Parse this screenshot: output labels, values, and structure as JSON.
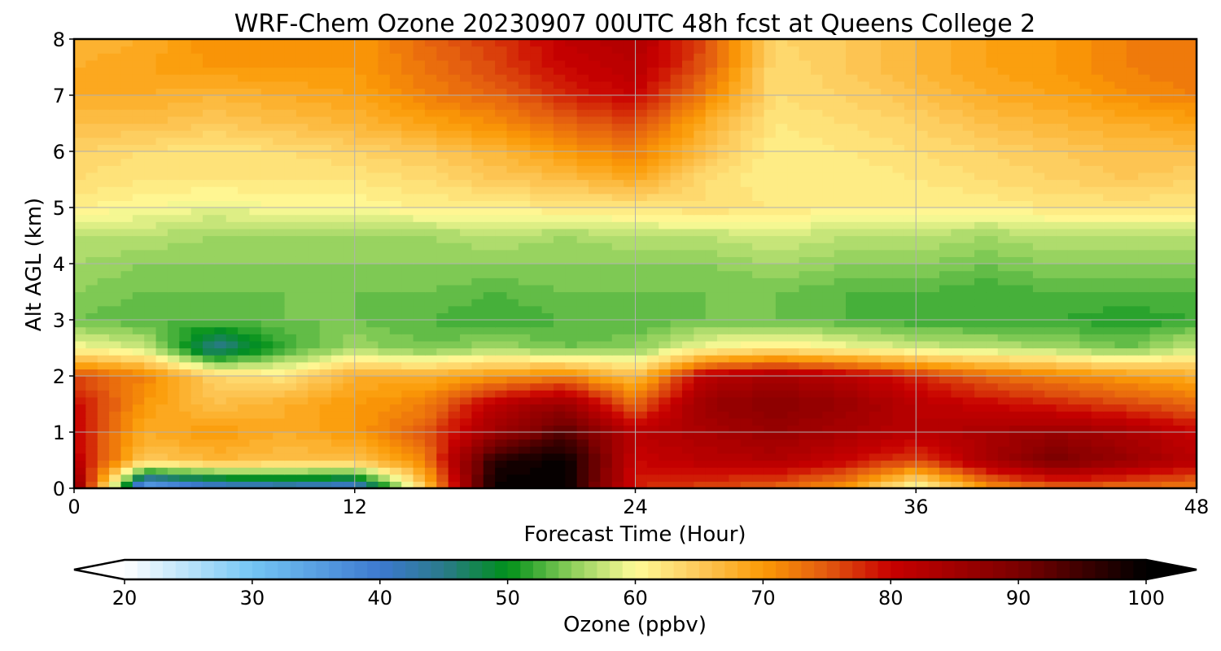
{
  "chart_data": {
    "type": "heatmap",
    "title": "WRF-Chem Ozone  20230907 00UTC 48h fcst at Queens College 2",
    "xlabel": "Forecast Time (Hour)",
    "ylabel": "Alt AGL (km)",
    "xlim": [
      0,
      48
    ],
    "ylim": [
      0,
      8
    ],
    "x_ticks": [
      "0",
      "12",
      "24",
      "36",
      "48"
    ],
    "y_ticks": [
      "0",
      "1",
      "2",
      "3",
      "4",
      "5",
      "6",
      "7",
      "8"
    ],
    "grid": true,
    "x": [
      0,
      3,
      6,
      9,
      12,
      15,
      18,
      21,
      24,
      27,
      30,
      33,
      36,
      39,
      42,
      45,
      48
    ],
    "y": [
      0,
      0.5,
      1,
      1.5,
      2,
      2.5,
      3,
      3.5,
      4,
      4.5,
      5,
      5.5,
      6,
      6.5,
      7,
      7.5,
      8
    ],
    "z": [
      [
        90,
        32,
        38,
        40,
        38,
        65,
        100,
        100,
        78,
        76,
        74,
        70,
        58,
        70,
        74,
        73,
        72
      ],
      [
        82,
        65,
        67,
        66,
        66,
        72,
        97,
        100,
        80,
        82,
        83,
        80,
        76,
        84,
        90,
        86,
        82
      ],
      [
        80,
        68,
        70,
        68,
        70,
        75,
        85,
        93,
        82,
        84,
        86,
        84,
        82,
        84,
        86,
        84,
        80
      ],
      [
        80,
        70,
        66,
        68,
        70,
        72,
        82,
        86,
        74,
        86,
        88,
        86,
        82,
        80,
        78,
        76,
        74
      ],
      [
        76,
        72,
        64,
        62,
        68,
        68,
        70,
        72,
        66,
        82,
        84,
        82,
        78,
        74,
        72,
        70,
        68
      ],
      [
        60,
        58,
        44,
        52,
        56,
        54,
        56,
        54,
        55,
        60,
        62,
        60,
        58,
        57,
        56,
        54,
        58
      ],
      [
        54,
        53,
        53,
        54,
        54,
        53,
        52,
        53,
        53,
        54,
        54,
        53,
        52,
        52,
        52,
        51,
        52
      ],
      [
        55,
        54,
        54,
        54,
        54,
        54,
        53,
        54,
        54,
        54,
        54,
        53,
        53,
        52,
        53,
        53,
        53
      ],
      [
        56,
        55,
        55,
        55,
        55,
        55,
        55,
        55,
        55,
        55,
        56,
        55,
        55,
        54,
        55,
        55,
        55
      ],
      [
        57,
        57,
        56,
        56,
        56,
        56,
        57,
        56,
        57,
        57,
        58,
        57,
        57,
        56,
        57,
        57,
        57
      ],
      [
        61,
        60,
        59,
        60,
        60,
        61,
        61,
        62,
        62,
        63,
        62,
        61,
        61,
        61,
        62,
        62,
        62
      ],
      [
        63,
        62,
        62,
        62,
        62,
        63,
        65,
        66,
        68,
        63,
        61,
        61,
        62,
        63,
        64,
        65,
        64
      ],
      [
        64,
        63,
        62,
        63,
        64,
        65,
        67,
        70,
        72,
        66,
        61,
        62,
        63,
        64,
        65,
        66,
        66
      ],
      [
        66,
        66,
        65,
        66,
        67,
        69,
        71,
        74,
        76,
        68,
        62,
        63,
        64,
        66,
        67,
        68,
        69
      ],
      [
        68,
        68,
        67,
        68,
        69,
        72,
        74,
        78,
        80,
        72,
        63,
        64,
        66,
        68,
        69,
        71,
        72
      ],
      [
        68,
        69,
        70,
        70,
        70,
        73,
        76,
        80,
        82,
        75,
        63,
        65,
        67,
        69,
        70,
        72,
        73
      ],
      [
        67,
        68,
        71,
        71,
        70,
        74,
        77,
        81,
        83,
        76,
        64,
        65,
        67,
        69,
        70,
        72,
        73
      ]
    ],
    "colorbar": {
      "label": "Ozone  (ppbv)",
      "min": 20,
      "max": 100,
      "step": 1,
      "extend": "both",
      "ticks": [
        "20",
        "30",
        "40",
        "50",
        "60",
        "70",
        "80",
        "90",
        "100"
      ]
    },
    "colormap_stops": [
      {
        "v": 20,
        "c": "#ffffff"
      },
      {
        "v": 30,
        "c": "#74c6f4"
      },
      {
        "v": 40,
        "c": "#3d79d0"
      },
      {
        "v": 45,
        "c": "#2a7a8a"
      },
      {
        "v": 50,
        "c": "#00901a"
      },
      {
        "v": 55,
        "c": "#8ccf5a"
      },
      {
        "v": 60,
        "c": "#fffb98"
      },
      {
        "v": 65,
        "c": "#fdc95a"
      },
      {
        "v": 70,
        "c": "#fb9a06"
      },
      {
        "v": 75,
        "c": "#e25a10"
      },
      {
        "v": 80,
        "c": "#c80000"
      },
      {
        "v": 90,
        "c": "#7a0000"
      },
      {
        "v": 100,
        "c": "#000000"
      }
    ]
  }
}
